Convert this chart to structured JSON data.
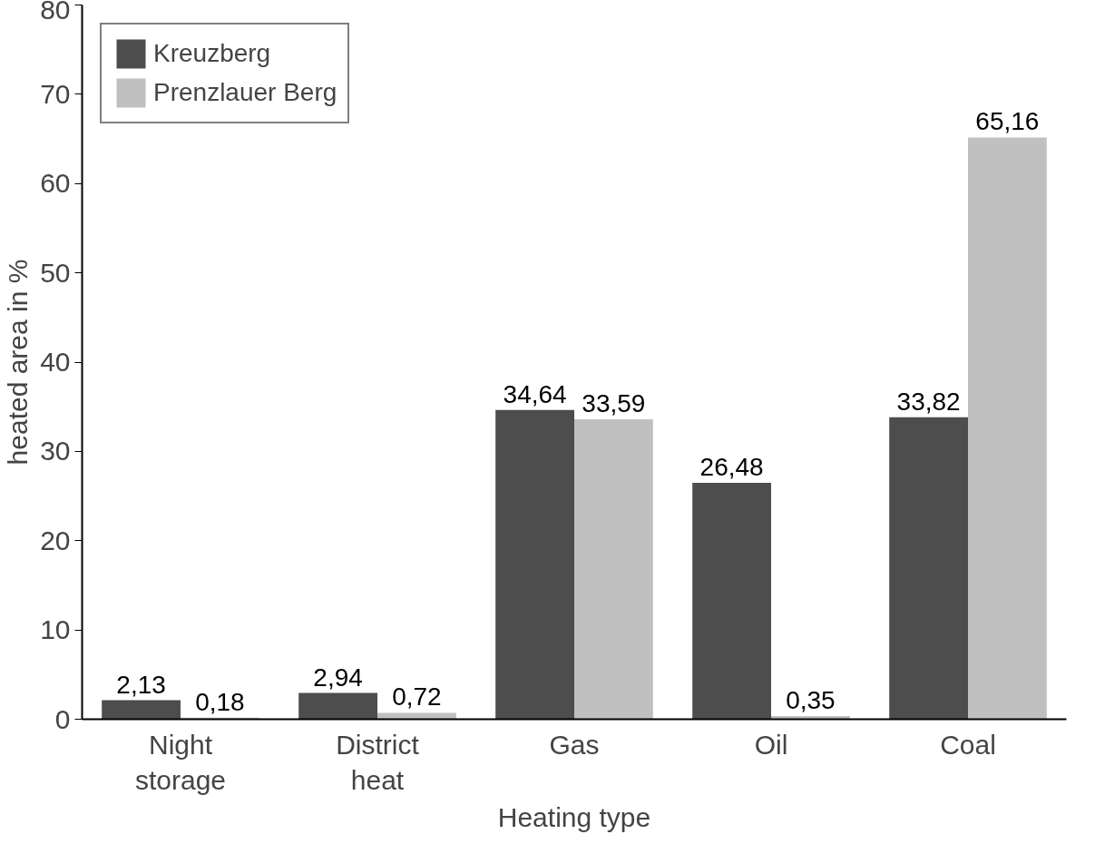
{
  "chart_data": {
    "type": "bar",
    "xlabel": "Heating type",
    "ylabel": "heated area in %",
    "categories": [
      "Night storage",
      "District heat",
      "Gas",
      "Oil",
      "Coal"
    ],
    "series": [
      {
        "name": "Kreuzberg",
        "color": "#4d4d4d",
        "values": [
          2.13,
          2.94,
          34.64,
          26.48,
          33.82
        ],
        "value_labels": [
          "2,13",
          "2,94",
          "34,64",
          "26,48",
          "33,82"
        ]
      },
      {
        "name": "Prenzlauer Berg",
        "color": "#c0c0c0",
        "values": [
          0.18,
          0.72,
          33.59,
          0.35,
          65.16
        ],
        "value_labels": [
          "0,18",
          "0,72",
          "33,59",
          "0,35",
          "65,16"
        ]
      }
    ],
    "ylim": [
      0,
      80
    ],
    "yticks": [
      0,
      10,
      20,
      30,
      40,
      50,
      60,
      70,
      80
    ],
    "grid": false,
    "legend": "top left"
  }
}
